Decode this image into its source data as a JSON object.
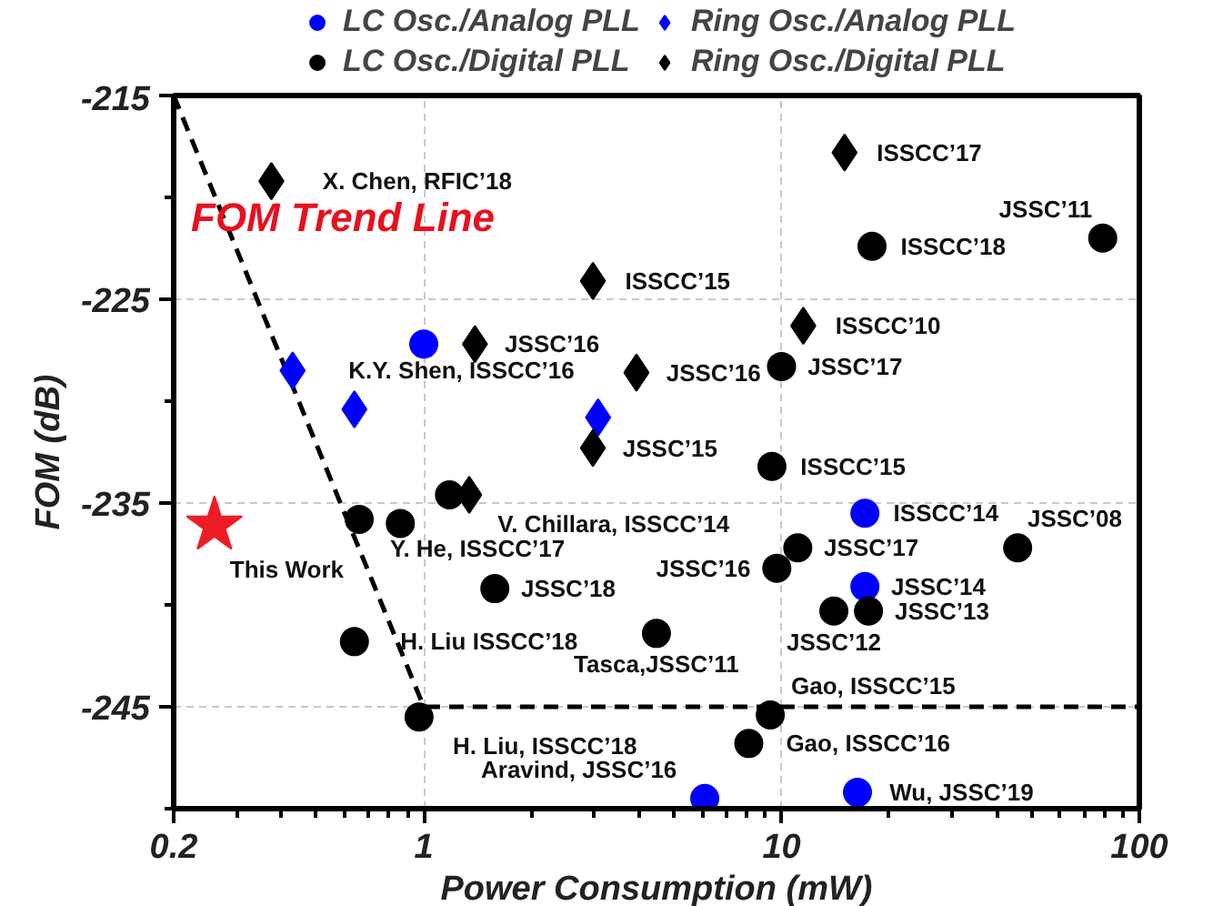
{
  "chart_data": {
    "type": "scatter",
    "xlabel": "Power Consumption (mW)",
    "ylabel": "FOM (dB)",
    "log": "x",
    "grid": true,
    "legend": "top",
    "xlim": [
      0.2,
      100
    ],
    "ylim": [
      -250,
      -215
    ],
    "xticks": [
      0.2,
      {
        "value": 0.3,
        "label": null
      },
      {
        "value": 0.4,
        "label": null
      },
      {
        "value": 0.5,
        "label": null
      },
      {
        "value": 0.6,
        "label": null
      },
      {
        "value": 0.7,
        "label": null
      },
      {
        "value": 0.8,
        "label": null
      },
      {
        "value": 0.9,
        "label": null
      },
      1,
      {
        "value": 2,
        "label": null
      },
      {
        "value": 3,
        "label": null
      },
      {
        "value": 4,
        "label": null
      },
      {
        "value": 5,
        "label": null
      },
      {
        "value": 6,
        "label": null
      },
      {
        "value": 7,
        "label": null
      },
      {
        "value": 8,
        "label": null
      },
      {
        "value": 9,
        "label": null
      },
      10,
      {
        "value": 20,
        "label": null
      },
      {
        "value": 30,
        "label": null
      },
      {
        "value": 40,
        "label": null
      },
      {
        "value": 50,
        "label": null
      },
      {
        "value": 60,
        "label": null
      },
      {
        "value": 70,
        "label": null
      },
      {
        "value": 80,
        "label": null
      },
      {
        "value": 90,
        "label": null
      },
      100
    ],
    "yticks": [
      -215,
      {
        "value": -220,
        "label": null
      },
      -225,
      {
        "value": -230,
        "label": null
      },
      -235,
      {
        "value": -240,
        "label": null
      },
      -245,
      {
        "value": -250,
        "label": null
      }
    ],
    "series": [
      {
        "type": "line",
        "name": "FOM Trend Line",
        "color": "#000000",
        "line_style": "dashed",
        "marker": "none",
        "x": [
          0.2,
          1,
          100
        ],
        "values": [
          -215,
          -245,
          -245
        ]
      },
      {
        "name": "LC Osc./Analog PLL",
        "color": "#0000ff",
        "marker": "circle",
        "x": [
          1.0,
          17.1,
          17.1,
          6.1,
          16.3
        ],
        "values": [
          -227.2,
          -235.5,
          -239.1,
          -249.5,
          -249.2
        ]
      },
      {
        "name": "Ring Osc./Analog PLL",
        "color": "#0000ff",
        "marker": "diamond",
        "x": [
          0.43,
          0.64,
          3.07
        ],
        "values": [
          -228.5,
          -230.4,
          -230.8
        ]
      },
      {
        "name": "LC Osc./Digital PLL",
        "color": "#000000",
        "marker": "circle",
        "x": [
          17.9,
          79,
          10,
          9.4,
          11.1,
          9.7,
          14.0,
          17.5,
          45.7,
          9.3,
          8.1,
          4.47,
          1.58,
          0.64,
          0.97,
          0.66,
          0.86,
          1.18
        ],
        "values": [
          -222.4,
          -222.0,
          -228.3,
          -233.2,
          -237.2,
          -238.2,
          -240.3,
          -240.3,
          -237.2,
          -245.4,
          -246.8,
          -241.4,
          -239.2,
          -241.8,
          -245.5,
          -235.8,
          -236.0,
          -234.6
        ]
      },
      {
        "name": "Ring Osc./Digital PLL",
        "color": "#000000",
        "marker": "diamond",
        "x": [
          0.375,
          15.0,
          2.97,
          1.39,
          3.93,
          11.5,
          2.97,
          1.34
        ],
        "values": [
          -219.2,
          -217.8,
          -224.1,
          -227.2,
          -228.6,
          -226.3,
          -232.3,
          -234.6
        ]
      },
      {
        "color": "#ee1c24",
        "marker": "star",
        "x": [
          0.26
        ],
        "values": [
          -236.1
        ]
      }
    ],
    "annotations": [
      {
        "text": "X. Chen, RFIC’18",
        "x": 0.375,
        "y": -219.2
      },
      {
        "text": "K.Y. Shen, ISSCC’16",
        "x": 0.43,
        "y": -228.5
      },
      {
        "text": "JSSC’16",
        "x": 1.39,
        "y": -227.2
      },
      {
        "text": "ISSCC’15",
        "x": 2.97,
        "y": -224.1
      },
      {
        "text": "JSSC’16",
        "x": 3.93,
        "y": -228.6
      },
      {
        "text": "JSSC’15",
        "x": 2.97,
        "y": -232.3
      },
      {
        "text": "ISSCC’17",
        "x": 15.0,
        "y": -217.8
      },
      {
        "text": "ISSCC’18",
        "x": 17.9,
        "y": -222.4
      },
      {
        "text": "JSSC’11",
        "x": 79,
        "y": -222.0
      },
      {
        "text": "ISSCC’10",
        "x": 11.5,
        "y": -226.3
      },
      {
        "text": "JSSC’17",
        "x": 10,
        "y": -228.3
      },
      {
        "text": "ISSCC’15",
        "x": 9.4,
        "y": -233.2
      },
      {
        "text": "ISSCC’14",
        "x": 17.1,
        "y": -235.5
      },
      {
        "text": "JSSC’17",
        "x": 11.1,
        "y": -237.2
      },
      {
        "text": "JSSC’08",
        "x": 45.7,
        "y": -237.2
      },
      {
        "text": "JSSC’16",
        "x": 9.7,
        "y": -238.2
      },
      {
        "text": "JSSC’14",
        "x": 17.1,
        "y": -239.1
      },
      {
        "text": "JSSC’12",
        "x": 14.0,
        "y": -240.3
      },
      {
        "text": "JSSC’13",
        "x": 17.5,
        "y": -240.3
      },
      {
        "text": "Gao, ISSCC’15",
        "x": 9.3,
        "y": -245.4
      },
      {
        "text": "Gao, ISSCC’16",
        "x": 8.1,
        "y": -246.8
      },
      {
        "text": "Wu, JSSC’19",
        "x": 16.3,
        "y": -249.2
      },
      {
        "text": "Aravind, JSSC’16",
        "x": 6.1,
        "y": -249.5
      },
      {
        "text": "Tasca,JSSC’11",
        "x": 4.47,
        "y": -241.4
      },
      {
        "text": "JSSC’18",
        "x": 1.58,
        "y": -239.2
      },
      {
        "text": "V. Chillara, ISSCC’14",
        "x": 1.18,
        "y": -234.6
      },
      {
        "text": "Y. He, ISSCC’17",
        "x": 0.66,
        "y": -235.8
      },
      {
        "text": "This Work",
        "x": 0.26,
        "y": -236.1
      },
      {
        "text": "H. Liu ISSCC’18",
        "x": 0.64,
        "y": -241.8
      },
      {
        "text": "H. Liu, ISSCC’18",
        "x": 0.97,
        "y": -245.5
      }
    ]
  }
}
